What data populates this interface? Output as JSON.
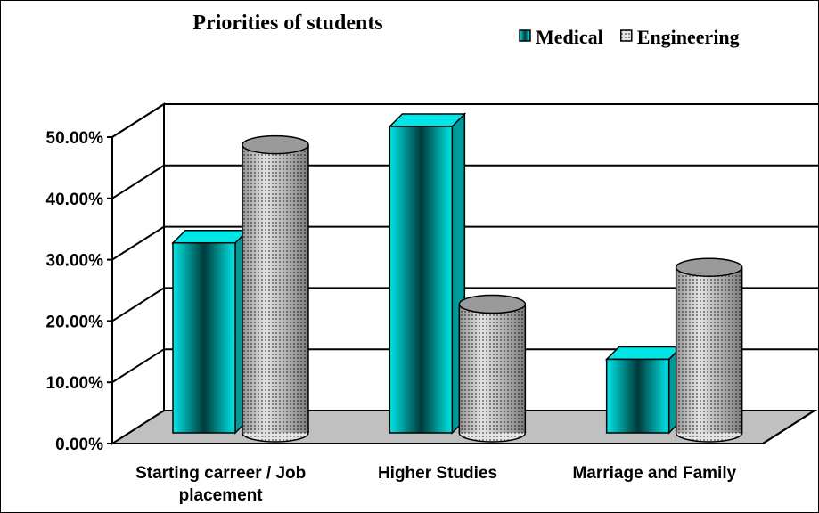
{
  "chart_data": {
    "type": "bar3d",
    "title": "Priorities of students",
    "categories": [
      "Starting carreer / Job placement",
      "Higher Studies",
      "Marriage and Family"
    ],
    "series": [
      {
        "name": "Medical",
        "color": "#00e5e5",
        "values": [
          31,
          50,
          12
        ]
      },
      {
        "name": "Engineering",
        "color": "#bdbdbd",
        "values": [
          47,
          21,
          27
        ]
      }
    ],
    "ylim": [
      0,
      50
    ],
    "yticks": [
      {
        "value": 0,
        "label": "0.00%"
      },
      {
        "value": 10,
        "label": "10.00%"
      },
      {
        "value": 20,
        "label": "20.00%"
      },
      {
        "value": 30,
        "label": "30.00%"
      },
      {
        "value": 40,
        "label": "40.00%"
      },
      {
        "value": 50,
        "label": "50.00%"
      }
    ],
    "grid": true,
    "legend": "top-right"
  }
}
